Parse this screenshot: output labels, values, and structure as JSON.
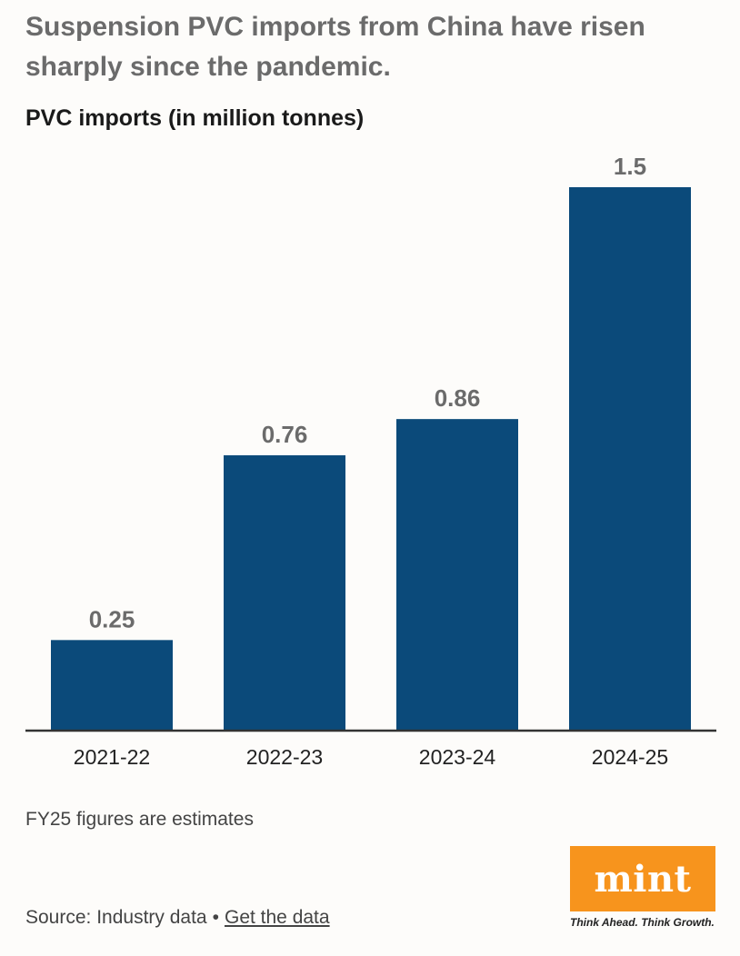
{
  "header": {
    "title": "Suspension PVC imports from China have risen sharply since the pandemic.",
    "subtitle": "PVC imports (in million tonnes)"
  },
  "chart_data": {
    "type": "bar",
    "title": "PVC imports (in million tonnes)",
    "categories": [
      "2021-22",
      "2022-23",
      "2023-24",
      "2024-25"
    ],
    "values": [
      0.25,
      0.76,
      0.86,
      1.5
    ],
    "value_labels": [
      "0.25",
      "0.76",
      "0.86",
      "1.5"
    ],
    "xlabel": "",
    "ylabel": "",
    "ylim": [
      0,
      1.5
    ],
    "grid": false,
    "bar_color": "#0b4a7a"
  },
  "footer": {
    "note": "FY25 figures are estimates",
    "source_text": "Source: Industry data",
    "separator": "•",
    "link_text": "Get the data"
  },
  "logo": {
    "text": "mint",
    "tagline": "Think Ahead. Think Growth.",
    "color": "#f7941d"
  }
}
